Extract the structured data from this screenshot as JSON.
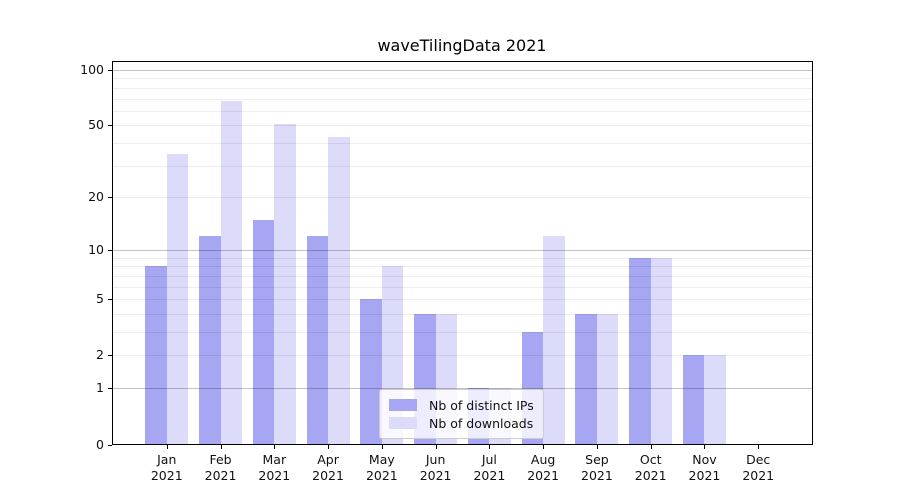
{
  "chart_data": {
    "type": "bar",
    "title": "waveTilingData 2021",
    "categories": [
      "Jan 2021",
      "Feb 2021",
      "Mar 2021",
      "Apr 2021",
      "May 2021",
      "Jun 2021",
      "Jul 2021",
      "Aug 2021",
      "Sep 2021",
      "Oct 2021",
      "Nov 2021",
      "Dec 2021"
    ],
    "series": [
      {
        "name": "Nb of distinct IPs",
        "color": "#a6a6f3",
        "values": [
          8,
          12,
          15,
          12,
          5,
          4,
          1,
          3,
          4,
          9,
          2,
          0
        ]
      },
      {
        "name": "Nb of downloads",
        "color": "#dcdcfa",
        "values": [
          35,
          68,
          51,
          43,
          8,
          4,
          1,
          12,
          4,
          9,
          2,
          0
        ]
      }
    ],
    "yscale": "log1p",
    "ylim": [
      0,
      110
    ],
    "yticks": [
      0,
      1,
      2,
      5,
      10,
      20,
      50,
      100
    ],
    "gridlines_major": [
      1,
      10,
      100
    ],
    "gridlines_minor": [
      2,
      3,
      4,
      5,
      6,
      7,
      8,
      9,
      20,
      30,
      40,
      50,
      60,
      70,
      80,
      90
    ],
    "grid": true,
    "legend_position": "lower center"
  }
}
